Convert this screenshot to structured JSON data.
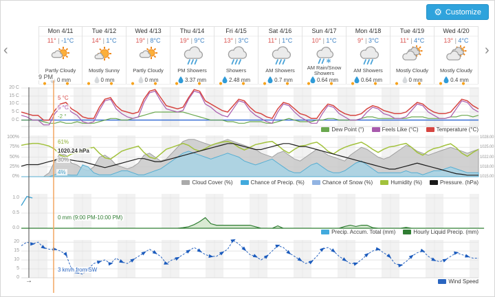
{
  "toolbar": {
    "customize": "Customize"
  },
  "nav": {
    "prev": "‹",
    "next": "›"
  },
  "crosshair": {
    "time_label": "9 PM",
    "wind_direction_arrow": "→"
  },
  "days": [
    {
      "name": "Mon 4/11",
      "high": "11°",
      "low": "-1°C",
      "condition": "Partly Cloudy",
      "icon": "partly-cloudy",
      "precip": "0 mm",
      "wet": false
    },
    {
      "name": "Tue 4/12",
      "high": "14°",
      "low": "1°C",
      "condition": "Mostly Sunny",
      "icon": "mostly-sunny",
      "precip": "0 mm",
      "wet": false
    },
    {
      "name": "Wed 4/13",
      "high": "19°",
      "low": "8°C",
      "condition": "Partly Cloudy",
      "icon": "partly-cloudy",
      "precip": "0 mm",
      "wet": false
    },
    {
      "name": "Thu 4/14",
      "high": "19°",
      "low": "9°C",
      "condition": "PM Showers",
      "icon": "showers",
      "precip": "3.37 mm",
      "wet": true
    },
    {
      "name": "Fri 4/15",
      "high": "13°",
      "low": "3°C",
      "condition": "Showers",
      "icon": "showers",
      "precip": "2.48 mm",
      "wet": true
    },
    {
      "name": "Sat 4/16",
      "high": "11°",
      "low": "1°C",
      "condition": "AM Showers",
      "icon": "showers",
      "precip": "0.7 mm",
      "wet": true
    },
    {
      "name": "Sun 4/17",
      "high": "10°",
      "low": "1°C",
      "condition": "AM Rain/Snow Showers",
      "icon": "rain-snow",
      "precip": "0.64 mm",
      "wet": true
    },
    {
      "name": "Mon 4/18",
      "high": "9°",
      "low": "3°C",
      "condition": "AM Showers",
      "icon": "showers",
      "precip": "0.64 mm",
      "wet": true
    },
    {
      "name": "Tue 4/19",
      "high": "11°",
      "low": "4°C",
      "condition": "Mostly Cloudy",
      "icon": "mostly-cloudy",
      "precip": "0 mm",
      "wet": false
    },
    {
      "name": "Wed 4/20",
      "high": "13°",
      "low": "4°C",
      "condition": "Mostly Cloudy",
      "icon": "mostly-cloudy",
      "precip": "0.4 mm",
      "wet": true
    }
  ],
  "chart_data": [
    {
      "id": "temperature",
      "type": "line",
      "x_start_hour": -9,
      "x_hours_step": 3,
      "yticks": [
        "20 C",
        "15 C",
        "10 C",
        "5 C",
        "0 C"
      ],
      "ylim": [
        -4,
        20
      ],
      "baseline": {
        "value": 0,
        "color": "#3a70d6"
      },
      "series": [
        {
          "name": "Temperature (°C)",
          "color": "#d64541",
          "values": [
            5,
            4,
            3,
            3,
            0,
            0,
            6,
            10,
            11,
            7,
            5,
            2,
            1,
            1,
            8,
            13,
            14,
            9,
            6,
            5,
            4,
            5,
            13,
            18,
            19,
            14,
            9,
            8,
            7,
            8,
            14,
            19,
            18,
            12,
            10,
            8,
            6,
            5,
            9,
            13,
            12,
            8,
            5,
            4,
            2,
            1,
            7,
            11,
            10,
            7,
            4,
            3,
            1,
            1,
            6,
            10,
            9,
            6,
            4,
            3,
            3,
            4,
            7,
            9,
            8,
            6,
            5,
            4,
            4,
            5,
            8,
            11,
            10,
            7,
            5,
            4,
            4,
            5,
            9,
            13,
            12,
            9,
            7
          ]
        },
        {
          "name": "Feels Like (°C)",
          "color": "#a85aad",
          "values": [
            3,
            2,
            0,
            0,
            -3,
            -3,
            4,
            8,
            9,
            5,
            3,
            -1,
            -2,
            -1,
            6,
            12,
            13,
            7,
            4,
            2,
            1,
            2,
            11,
            17,
            18,
            12,
            7,
            6,
            5,
            6,
            13,
            18,
            17,
            10,
            8,
            5,
            3,
            2,
            7,
            12,
            11,
            6,
            3,
            1,
            -1,
            -2,
            5,
            10,
            9,
            5,
            2,
            0,
            -2,
            -2,
            4,
            9,
            8,
            4,
            2,
            0,
            0,
            1,
            5,
            8,
            7,
            4,
            3,
            1,
            1,
            2,
            6,
            10,
            9,
            5,
            3,
            1,
            1,
            2,
            7,
            12,
            11,
            7,
            5
          ]
        },
        {
          "name": "Dew Point (°)",
          "color": "#6aa84f",
          "values": [
            0,
            0,
            0,
            0,
            -1,
            -2,
            -2,
            -1,
            -2,
            -2,
            -1,
            -2,
            -2,
            -2,
            -1,
            0,
            1,
            1,
            0,
            0,
            1,
            2,
            3,
            4,
            5,
            5,
            5,
            5,
            5,
            5,
            4,
            3,
            2,
            1,
            0,
            0,
            0,
            -1,
            -1,
            -2,
            -2,
            -1,
            -1,
            -1,
            -2,
            -2,
            -1,
            0,
            1,
            0,
            -1,
            -1,
            -1,
            0,
            0,
            1,
            1,
            0,
            0,
            0,
            0,
            1,
            2,
            2,
            1,
            1,
            1,
            1,
            1,
            1,
            2,
            2,
            2,
            1,
            1,
            1,
            1,
            2,
            2,
            3,
            3,
            2,
            3
          ]
        }
      ],
      "tooltip": [
        {
          "text": "5 °C",
          "color": "#d64541"
        },
        {
          "text": "5 °C",
          "color": "#a85aad"
        },
        {
          "text": "-2 °",
          "color": "#6aa84f"
        }
      ],
      "legend": [
        {
          "label": "Dew Point (°)",
          "color": "#6aa84f"
        },
        {
          "label": "Feels Like (°C)",
          "color": "#a85aad"
        },
        {
          "label": "Temperature (°C)",
          "color": "#d64541"
        }
      ]
    },
    {
      "id": "atmosphere",
      "type": "mixed",
      "yticks": [
        "100%",
        "75%",
        "50%",
        "25%",
        "0%"
      ],
      "ylim": [
        0,
        100
      ],
      "yticks_right": [
        "1028.00",
        "1025.00",
        "1022.00",
        "1018.00",
        "1015.00"
      ],
      "ylim_right": [
        1015,
        1028
      ],
      "series": [
        {
          "name": "Cloud Cover (%)",
          "kind": "area",
          "color": "#a0a0a0",
          "fill": "#c9c9c9",
          "values": [
            0,
            0,
            0,
            0,
            0,
            10,
            40,
            60,
            55,
            35,
            30,
            20,
            15,
            25,
            50,
            55,
            45,
            30,
            25,
            20,
            25,
            35,
            55,
            60,
            50,
            40,
            45,
            60,
            75,
            90,
            95,
            95,
            90,
            85,
            80,
            85,
            90,
            95,
            90,
            85,
            80,
            75,
            70,
            60,
            55,
            50,
            60,
            65,
            55,
            45,
            40,
            50,
            60,
            70,
            65,
            55,
            50,
            45,
            40,
            55,
            65,
            75,
            70,
            60,
            50,
            45,
            50,
            60,
            70,
            80,
            75,
            65,
            60,
            55,
            60,
            65,
            70,
            75,
            70,
            65,
            60,
            65,
            70
          ]
        },
        {
          "name": "Chance of Precip. (%)",
          "kind": "area",
          "color": "#56aed2",
          "fill": "#a8d4e5",
          "values": [
            0,
            0,
            0,
            0,
            0,
            0,
            5,
            10,
            5,
            4,
            4,
            30,
            25,
            10,
            5,
            5,
            5,
            10,
            15,
            15,
            10,
            5,
            5,
            10,
            15,
            20,
            30,
            40,
            50,
            60,
            65,
            60,
            55,
            50,
            45,
            50,
            55,
            60,
            55,
            50,
            40,
            35,
            30,
            35,
            40,
            45,
            35,
            25,
            15,
            10,
            10,
            20,
            30,
            35,
            25,
            15,
            10,
            10,
            15,
            25,
            35,
            40,
            30,
            20,
            10,
            10,
            10,
            10,
            10,
            15,
            10,
            10,
            5,
            10,
            15,
            15,
            20,
            25,
            20,
            15,
            10,
            10,
            10
          ]
        },
        {
          "name": "Humidity (%)",
          "kind": "line",
          "color": "#a2c23c",
          "values": [
            80,
            83,
            85,
            85,
            82,
            78,
            70,
            55,
            50,
            58,
            61,
            68,
            72,
            75,
            60,
            48,
            45,
            55,
            65,
            70,
            74,
            78,
            62,
            50,
            46,
            58,
            70,
            75,
            80,
            85,
            80,
            70,
            65,
            72,
            80,
            85,
            88,
            90,
            85,
            75,
            68,
            75,
            82,
            85,
            88,
            90,
            80,
            68,
            60,
            70,
            78,
            80,
            85,
            88,
            78,
            65,
            58,
            68,
            75,
            80,
            84,
            88,
            80,
            70,
            62,
            70,
            76,
            78,
            82,
            85,
            75,
            62,
            55,
            65,
            72,
            75,
            80,
            84,
            74,
            60,
            52,
            62,
            70
          ]
        },
        {
          "name": "Pressure. (hPa)",
          "kind": "line",
          "axis": "right",
          "color": "#1a1a1a",
          "values": [
            1018.5,
            1019,
            1019,
            1019,
            1019.5,
            1020,
            1020.5,
            1021,
            1021,
            1020.5,
            1020.2,
            1020,
            1019.5,
            1019,
            1018.5,
            1018,
            1018.5,
            1019,
            1019.5,
            1020,
            1020.5,
            1021,
            1021,
            1020.5,
            1020,
            1020,
            1020.5,
            1021,
            1021.5,
            1022,
            1022.5,
            1023,
            1023.5,
            1024,
            1024.5,
            1025,
            1025.5,
            1026,
            1026,
            1025.5,
            1025,
            1024.5,
            1024,
            1024,
            1024.5,
            1025,
            1025.5,
            1026,
            1026,
            1025.5,
            1025,
            1025,
            1024.5,
            1024,
            1023.5,
            1023,
            1022.5,
            1022,
            1021.5,
            1021,
            1020.5,
            1020,
            1019.5,
            1019,
            1018.5,
            1018,
            1017.5,
            1017.5,
            1018,
            1018.5,
            1019,
            1019.5,
            1019,
            1018.5,
            1018,
            1017.5,
            1017,
            1016.5,
            1016,
            1015.8,
            1015.5,
            1015.5,
            1015.5
          ]
        }
      ],
      "tooltip": [
        {
          "text": "61%",
          "color": "#8aae2f"
        },
        {
          "text": "1020.24 hPa",
          "color": "#333333",
          "bold": true
        },
        {
          "text": "30%",
          "color": "#8a8a8a"
        },
        {
          "text": "4%",
          "color": "#3f9fc9"
        }
      ],
      "legend": [
        {
          "label": "Cloud Cover (%)",
          "color": "#aaaaaa"
        },
        {
          "label": "Chance of Precip. (%)",
          "color": "#42aadd"
        },
        {
          "label": "Chance of Snow (%)",
          "color": "#92b4e3"
        },
        {
          "label": "Humidity (%)",
          "color": "#a2c23c"
        },
        {
          "label": "Pressure. (hPa)",
          "color": "#1a1a1a"
        }
      ]
    },
    {
      "id": "precipitation",
      "type": "mixed",
      "yticks": [
        "1.0",
        "0.5",
        "0.0"
      ],
      "ylim": [
        0,
        1.15
      ],
      "series": [
        {
          "name": "Precip. Accum. Total (mm)",
          "kind": "line",
          "color": "#3aa0d0",
          "values": [
            0.75,
            1.05,
            1.0
          ]
        },
        {
          "name": "Hourly Liquid Precip. (mm)",
          "kind": "area",
          "color": "#2f7d32",
          "fill": "#d9ead3",
          "values": [
            0,
            0,
            0,
            0,
            0,
            0,
            0,
            0,
            0,
            0,
            0,
            0,
            0,
            0,
            0,
            0,
            0,
            0,
            0,
            0,
            0,
            0,
            0,
            0,
            0,
            0,
            0,
            0,
            0,
            0.02,
            0.05,
            0.12,
            0.22,
            0.35,
            0.15,
            0.1,
            0.1,
            0.1,
            0.1,
            0.1,
            0.1,
            0.1,
            0.05,
            0,
            0,
            0,
            0.08,
            0,
            0,
            0,
            0,
            0,
            0,
            0,
            0,
            0,
            0,
            0,
            0.06,
            0.1,
            0.06,
            0.1,
            0.1,
            0.02,
            0,
            0,
            0,
            0,
            0,
            0.03,
            0,
            0,
            0,
            0,
            0,
            0,
            0,
            0,
            0,
            0,
            0,
            0,
            0,
            0
          ]
        }
      ],
      "tooltip": [
        {
          "text": "0 mm (9:00 PM-10:00 PM)",
          "color": "#2f7d32"
        }
      ],
      "legend": [
        {
          "label": "Precip. Accum. Total (mm)",
          "color": "#42aadd"
        },
        {
          "label": "Hourly Liquid Precip. (mm)",
          "color": "#2f7d32"
        }
      ]
    },
    {
      "id": "wind",
      "type": "line",
      "yticks": [
        "20",
        "15",
        "10",
        "5",
        "0"
      ],
      "ylim": [
        0,
        22
      ],
      "series": [
        {
          "name": "Wind Speed",
          "color": "#2a65c0",
          "markers": true,
          "values": [
            18,
            20,
            19,
            20,
            17,
            16,
            16,
            15,
            13,
            5,
            3,
            2,
            5,
            8,
            9,
            10,
            8,
            11,
            9,
            8,
            10,
            12,
            14,
            16,
            14,
            12,
            8,
            10,
            11,
            13,
            15,
            17,
            15,
            13,
            12,
            12,
            14,
            16,
            21,
            19,
            16,
            13,
            12,
            10,
            12,
            15,
            18,
            17,
            14,
            12,
            10,
            8,
            9,
            12,
            16,
            17,
            15,
            12,
            10,
            8,
            8,
            10,
            13,
            15,
            16,
            14,
            12,
            8,
            7,
            9,
            12,
            14,
            15,
            12,
            10,
            9,
            10,
            12,
            14,
            13,
            12,
            11,
            11
          ]
        }
      ],
      "tooltip": [
        {
          "text": "3 km/h from SW",
          "color": "#2a65c0"
        }
      ],
      "legend": [
        {
          "label": "Wind Speed",
          "color": "#2a65c0"
        }
      ]
    }
  ]
}
